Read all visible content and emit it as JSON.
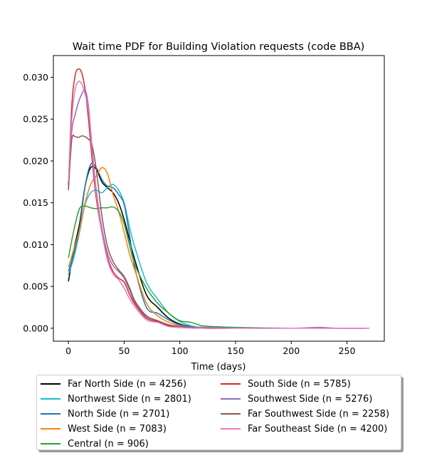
{
  "chart_data": {
    "type": "line",
    "title": "Wait time PDF for Building Violation  requests (code BBA)",
    "xlabel": "Time (days)",
    "ylabel": "",
    "xlim": [
      -13.5,
      283.5
    ],
    "ylim": [
      -0.00155,
      0.0326
    ],
    "xticks": [
      0,
      50,
      100,
      150,
      200,
      250
    ],
    "xtick_labels": [
      "0",
      "50",
      "100",
      "150",
      "200",
      "250"
    ],
    "yticks": [
      0.0,
      0.005,
      0.01,
      0.015,
      0.02,
      0.025,
      0.03
    ],
    "ytick_labels": [
      "0.000",
      "0.005",
      "0.010",
      "0.015",
      "0.020",
      "0.025",
      "0.030"
    ],
    "grid": false,
    "legend_placement": "below plot, two columns",
    "series": [
      {
        "name": "Far North Side (n = 4256)",
        "color": "#000000",
        "x": [
          0,
          5,
          10,
          15,
          20,
          25,
          30,
          35,
          40,
          45,
          50,
          55,
          60,
          70,
          80,
          90,
          100,
          110,
          120,
          150,
          200,
          270
        ],
        "y": [
          0.0056,
          0.0095,
          0.0125,
          0.017,
          0.0192,
          0.019,
          0.0175,
          0.0168,
          0.0162,
          0.015,
          0.013,
          0.0105,
          0.008,
          0.004,
          0.0025,
          0.0012,
          0.0005,
          0.0002,
          0.0001,
          0.0,
          0.0,
          0.0
        ]
      },
      {
        "name": "Northwest Side (n = 2801)",
        "color": "#17becf",
        "x": [
          0,
          5,
          10,
          15,
          20,
          25,
          30,
          35,
          40,
          45,
          50,
          55,
          60,
          70,
          80,
          90,
          100,
          110,
          120,
          150,
          200,
          270
        ],
        "y": [
          0.0064,
          0.0085,
          0.0115,
          0.0148,
          0.0162,
          0.0165,
          0.0162,
          0.0168,
          0.0172,
          0.0165,
          0.015,
          0.012,
          0.0095,
          0.0055,
          0.0035,
          0.0018,
          0.0008,
          0.0003,
          0.0001,
          0.0,
          0.0,
          0.0
        ]
      },
      {
        "name": "North Side (n = 2701)",
        "color": "#1f77b4",
        "x": [
          0,
          5,
          10,
          15,
          20,
          25,
          30,
          35,
          40,
          45,
          50,
          55,
          60,
          70,
          80,
          90,
          100,
          110,
          120,
          150,
          200,
          270
        ],
        "y": [
          0.0068,
          0.009,
          0.012,
          0.017,
          0.0196,
          0.0192,
          0.0178,
          0.017,
          0.0168,
          0.016,
          0.0148,
          0.011,
          0.007,
          0.0025,
          0.0018,
          0.001,
          0.0004,
          0.0002,
          0.0001,
          0.0,
          0.0,
          0.0
        ]
      },
      {
        "name": "West Side (n = 7083)",
        "color": "#ff7f0e",
        "x": [
          0,
          5,
          10,
          15,
          20,
          25,
          30,
          35,
          40,
          45,
          50,
          55,
          60,
          70,
          80,
          90,
          100,
          110,
          120,
          150,
          200,
          270
        ],
        "y": [
          0.0073,
          0.0095,
          0.0118,
          0.015,
          0.0172,
          0.0182,
          0.0192,
          0.0185,
          0.016,
          0.014,
          0.0115,
          0.0088,
          0.0068,
          0.003,
          0.0015,
          0.0007,
          0.0003,
          0.0001,
          0.0001,
          0.0,
          0.0,
          0.0
        ]
      },
      {
        "name": "Central (n = 906)",
        "color": "#2ca02c",
        "x": [
          0,
          5,
          10,
          15,
          20,
          25,
          30,
          35,
          40,
          45,
          50,
          55,
          60,
          70,
          80,
          90,
          100,
          110,
          120,
          130,
          150,
          200,
          270
        ],
        "y": [
          0.0084,
          0.0118,
          0.0143,
          0.0146,
          0.0144,
          0.0143,
          0.0144,
          0.0144,
          0.0145,
          0.014,
          0.0125,
          0.0098,
          0.0075,
          0.0048,
          0.003,
          0.0018,
          0.0009,
          0.0007,
          0.0003,
          0.0002,
          0.0001,
          0.0,
          0.0
        ]
      },
      {
        "name": "South Side (n = 5785)",
        "color": "#d62728",
        "x": [
          0,
          3,
          6,
          9,
          12,
          15,
          18,
          21,
          25,
          30,
          35,
          40,
          45,
          50,
          55,
          60,
          70,
          80,
          90,
          100,
          120,
          150,
          200,
          270
        ],
        "y": [
          0.017,
          0.0265,
          0.0302,
          0.031,
          0.0305,
          0.0285,
          0.025,
          0.0205,
          0.0155,
          0.0115,
          0.0085,
          0.0068,
          0.006,
          0.0055,
          0.004,
          0.0028,
          0.0012,
          0.0008,
          0.0003,
          0.0001,
          0.0,
          0.0,
          0.0,
          0.0
        ]
      },
      {
        "name": "Southwest Side (n = 5276)",
        "color": "#9467bd",
        "x": [
          0,
          3,
          6,
          9,
          12,
          15,
          18,
          21,
          25,
          30,
          35,
          40,
          45,
          50,
          55,
          60,
          70,
          80,
          90,
          100,
          120,
          150,
          200,
          225,
          240,
          270
        ],
        "y": [
          0.0168,
          0.0235,
          0.0255,
          0.027,
          0.028,
          0.0285,
          0.0265,
          0.022,
          0.0165,
          0.012,
          0.009,
          0.0075,
          0.0068,
          0.006,
          0.0045,
          0.003,
          0.0014,
          0.0009,
          0.0004,
          0.0002,
          0.0001,
          0.0,
          0.0,
          0.0001,
          0.0,
          0.0
        ]
      },
      {
        "name": "Far Southwest Side (n = 2258)",
        "color": "#8c564b",
        "x": [
          0,
          3,
          6,
          9,
          12,
          15,
          18,
          21,
          25,
          30,
          35,
          40,
          45,
          50,
          55,
          60,
          70,
          80,
          90,
          100,
          120,
          150,
          200,
          270
        ],
        "y": [
          0.0165,
          0.0225,
          0.0229,
          0.0228,
          0.023,
          0.0229,
          0.0226,
          0.022,
          0.019,
          0.0135,
          0.0098,
          0.008,
          0.007,
          0.0062,
          0.0048,
          0.0032,
          0.0015,
          0.0009,
          0.0004,
          0.0002,
          0.0,
          0.0,
          0.0,
          0.0
        ]
      },
      {
        "name": "Far Southeast Side (n = 4200)",
        "color": "#e377c2",
        "x": [
          0,
          3,
          6,
          9,
          12,
          15,
          18,
          21,
          25,
          30,
          35,
          40,
          45,
          50,
          55,
          60,
          70,
          80,
          90,
          100,
          120,
          150,
          200,
          270
        ],
        "y": [
          0.0175,
          0.025,
          0.0285,
          0.0295,
          0.0292,
          0.028,
          0.026,
          0.0215,
          0.016,
          0.0115,
          0.0082,
          0.0065,
          0.0058,
          0.0048,
          0.0035,
          0.0025,
          0.001,
          0.0007,
          0.0002,
          0.0001,
          0.0,
          0.0,
          0.0,
          0.0
        ]
      }
    ]
  }
}
